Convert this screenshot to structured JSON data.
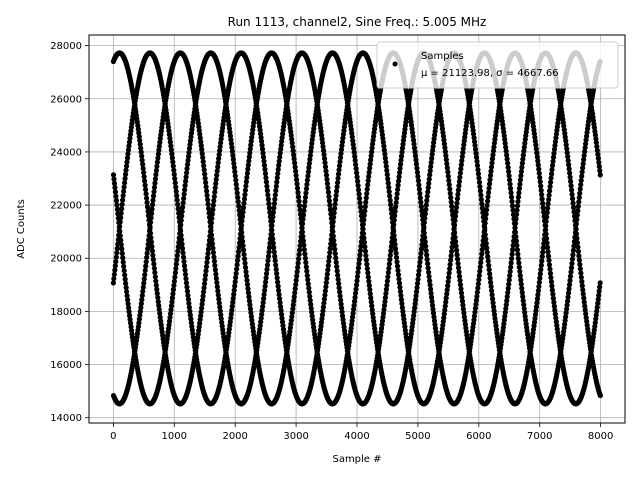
{
  "chart_data": {
    "type": "scatter",
    "title": "Run 1113, channel2, Sine Freq.: 5.005 MHz",
    "xlabel": "Sample #",
    "ylabel": "ADC Counts",
    "xlim": [
      -400,
      8400
    ],
    "ylim": [
      13800,
      28400
    ],
    "xticks": [
      0,
      1000,
      2000,
      3000,
      4000,
      5000,
      6000,
      7000,
      8000
    ],
    "yticks": [
      14000,
      16000,
      18000,
      20000,
      22000,
      24000,
      26000,
      28000
    ],
    "grid": true,
    "legend_position": "top-right",
    "series": [
      {
        "name": "Samples",
        "stat_label": "μ = 21123.98, σ = 4667.66",
        "color": "#000000",
        "marker": "dot",
        "n_samples": 8000,
        "model": "sine",
        "mean": 21123.98,
        "amplitude": 6600,
        "envelope_period_samples": 1998,
        "envelope_peak_sample": 600,
        "phase_count": 4
      }
    ]
  }
}
